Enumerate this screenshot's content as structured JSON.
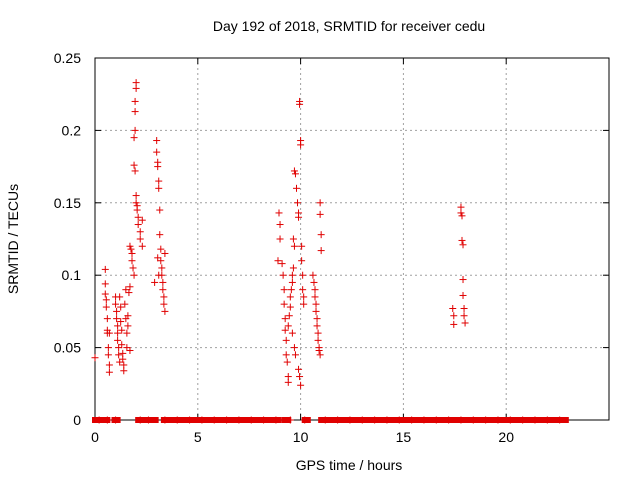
{
  "chart_data": {
    "type": "scatter",
    "title": "Day 192 of 2018, SRMTID for receiver cedu",
    "xlabel": "GPS time / hours",
    "ylabel": "SRMTID / TECUs",
    "xlim": [
      0,
      25
    ],
    "ylim": [
      0,
      0.25
    ],
    "xticks": [
      0,
      5,
      10,
      15,
      20
    ],
    "xtick_labels": [
      "0",
      "5",
      "10",
      "15",
      "20"
    ],
    "yticks": [
      0,
      0.05,
      0.1,
      0.15,
      0.2,
      0.25
    ],
    "ytick_labels": [
      "0",
      "0.05",
      "0.1",
      "0.15",
      "0.2",
      "0.25"
    ],
    "grid": true,
    "marker": "+",
    "series": [
      {
        "name": "SRMTID",
        "color": "#e00000",
        "points": [
          [
            0.0,
            0.043
          ],
          [
            0.5,
            0.104
          ],
          [
            0.5,
            0.094
          ],
          [
            0.5,
            0.087
          ],
          [
            0.55,
            0.083
          ],
          [
            0.55,
            0.078
          ],
          [
            0.6,
            0.07
          ],
          [
            0.6,
            0.062
          ],
          [
            0.6,
            0.06
          ],
          [
            0.65,
            0.05
          ],
          [
            0.65,
            0.045
          ],
          [
            0.7,
            0.038
          ],
          [
            0.7,
            0.033
          ],
          [
            0.7,
            0.06
          ],
          [
            1.0,
            0.085
          ],
          [
            1.0,
            0.08
          ],
          [
            1.05,
            0.075
          ],
          [
            1.05,
            0.07
          ],
          [
            1.1,
            0.065
          ],
          [
            1.1,
            0.06
          ],
          [
            1.1,
            0.055
          ],
          [
            1.15,
            0.05
          ],
          [
            1.15,
            0.045
          ],
          [
            1.2,
            0.04
          ],
          [
            1.2,
            0.085
          ],
          [
            1.25,
            0.078
          ],
          [
            1.25,
            0.068
          ],
          [
            1.3,
            0.062
          ],
          [
            1.3,
            0.052
          ],
          [
            1.35,
            0.046
          ],
          [
            1.35,
            0.042
          ],
          [
            1.4,
            0.038
          ],
          [
            1.4,
            0.034
          ],
          [
            1.45,
            0.08
          ],
          [
            1.5,
            0.09
          ],
          [
            1.5,
            0.07
          ],
          [
            1.55,
            0.06
          ],
          [
            1.55,
            0.05
          ],
          [
            1.6,
            0.065
          ],
          [
            1.6,
            0.072
          ],
          [
            1.65,
            0.088
          ],
          [
            1.7,
            0.092
          ],
          [
            1.7,
            0.048
          ],
          [
            1.7,
            0.12
          ],
          [
            1.75,
            0.118
          ],
          [
            1.8,
            0.115
          ],
          [
            1.8,
            0.11
          ],
          [
            1.85,
            0.105
          ],
          [
            1.9,
            0.1
          ],
          [
            1.9,
            0.195
          ],
          [
            1.95,
            0.2
          ],
          [
            1.95,
            0.213
          ],
          [
            1.95,
            0.22
          ],
          [
            2.0,
            0.233
          ],
          [
            2.0,
            0.229
          ],
          [
            1.9,
            0.176
          ],
          [
            1.95,
            0.172
          ],
          [
            2.0,
            0.155
          ],
          [
            2.0,
            0.15
          ],
          [
            2.05,
            0.148
          ],
          [
            2.05,
            0.145
          ],
          [
            2.1,
            0.14
          ],
          [
            2.1,
            0.135
          ],
          [
            2.2,
            0.13
          ],
          [
            2.2,
            0.125
          ],
          [
            2.3,
            0.138
          ],
          [
            2.3,
            0.12
          ],
          [
            2.9,
            0.095
          ],
          [
            3.0,
            0.193
          ],
          [
            3.0,
            0.185
          ],
          [
            3.05,
            0.178
          ],
          [
            3.05,
            0.175
          ],
          [
            3.1,
            0.165
          ],
          [
            3.1,
            0.16
          ],
          [
            3.15,
            0.145
          ],
          [
            3.15,
            0.128
          ],
          [
            3.2,
            0.118
          ],
          [
            3.2,
            0.11
          ],
          [
            3.25,
            0.105
          ],
          [
            3.25,
            0.1
          ],
          [
            3.3,
            0.095
          ],
          [
            3.3,
            0.09
          ],
          [
            3.35,
            0.085
          ],
          [
            3.35,
            0.08
          ],
          [
            3.4,
            0.075
          ],
          [
            3.4,
            0.115
          ],
          [
            3.05,
            0.112
          ],
          [
            3.1,
            0.1
          ],
          [
            8.9,
            0.11
          ],
          [
            8.95,
            0.143
          ],
          [
            9.0,
            0.135
          ],
          [
            9.0,
            0.125
          ],
          [
            9.1,
            0.108
          ],
          [
            9.15,
            0.1
          ],
          [
            9.2,
            0.09
          ],
          [
            9.2,
            0.08
          ],
          [
            9.25,
            0.07
          ],
          [
            9.25,
            0.062
          ],
          [
            9.3,
            0.055
          ],
          [
            9.3,
            0.045
          ],
          [
            9.35,
            0.04
          ],
          [
            9.4,
            0.03
          ],
          [
            9.4,
            0.026
          ],
          [
            9.4,
            0.065
          ],
          [
            9.45,
            0.072
          ],
          [
            9.5,
            0.078
          ],
          [
            9.5,
            0.085
          ],
          [
            9.55,
            0.09
          ],
          [
            9.6,
            0.095
          ],
          [
            9.6,
            0.1
          ],
          [
            9.65,
            0.105
          ],
          [
            9.65,
            0.125
          ],
          [
            9.7,
            0.12
          ],
          [
            9.7,
            0.172
          ],
          [
            9.75,
            0.17
          ],
          [
            9.8,
            0.16
          ],
          [
            9.85,
            0.15
          ],
          [
            9.9,
            0.143
          ],
          [
            9.9,
            0.14
          ],
          [
            9.95,
            0.22
          ],
          [
            9.95,
            0.218
          ],
          [
            10.0,
            0.193
          ],
          [
            10.0,
            0.19
          ],
          [
            10.05,
            0.12
          ],
          [
            10.05,
            0.11
          ],
          [
            10.1,
            0.1
          ],
          [
            10.1,
            0.09
          ],
          [
            10.15,
            0.085
          ],
          [
            10.15,
            0.08
          ],
          [
            9.9,
            0.035
          ],
          [
            9.95,
            0.03
          ],
          [
            10.0,
            0.024
          ],
          [
            9.6,
            0.06
          ],
          [
            9.7,
            0.05
          ],
          [
            9.75,
            0.045
          ],
          [
            10.6,
            0.1
          ],
          [
            10.65,
            0.095
          ],
          [
            10.7,
            0.09
          ],
          [
            10.7,
            0.085
          ],
          [
            10.75,
            0.08
          ],
          [
            10.75,
            0.075
          ],
          [
            10.8,
            0.07
          ],
          [
            10.8,
            0.065
          ],
          [
            10.85,
            0.06
          ],
          [
            10.85,
            0.055
          ],
          [
            10.9,
            0.05
          ],
          [
            10.9,
            0.048
          ],
          [
            10.95,
            0.045
          ],
          [
            10.95,
            0.15
          ],
          [
            10.95,
            0.142
          ],
          [
            11.0,
            0.128
          ],
          [
            11.0,
            0.117
          ],
          [
            17.4,
            0.077
          ],
          [
            17.45,
            0.072
          ],
          [
            17.45,
            0.066
          ],
          [
            17.8,
            0.147
          ],
          [
            17.8,
            0.143
          ],
          [
            17.85,
            0.141
          ],
          [
            17.85,
            0.124
          ],
          [
            17.9,
            0.121
          ],
          [
            17.9,
            0.097
          ],
          [
            17.9,
            0.086
          ],
          [
            17.95,
            0.077
          ],
          [
            17.95,
            0.072
          ],
          [
            18.0,
            0.067
          ],
          [
            0.2,
            0.0
          ],
          [
            0.6,
            0.0
          ],
          [
            1.0,
            0.0
          ],
          [
            2.2,
            0.0
          ],
          [
            2.6,
            0.0
          ],
          [
            3.4,
            0.0
          ],
          [
            4.0,
            0.0
          ],
          [
            4.6,
            0.0
          ],
          [
            5.2,
            0.0
          ],
          [
            5.8,
            0.0
          ],
          [
            6.4,
            0.0
          ],
          [
            7.0,
            0.0
          ],
          [
            7.6,
            0.0
          ],
          [
            8.2,
            0.0
          ],
          [
            8.8,
            0.0
          ],
          [
            9.5,
            0.0
          ],
          [
            10.2,
            0.0
          ],
          [
            11.2,
            0.0
          ],
          [
            11.8,
            0.0
          ],
          [
            12.4,
            0.0
          ],
          [
            13.0,
            0.0
          ],
          [
            13.6,
            0.0
          ],
          [
            14.2,
            0.0
          ],
          [
            14.8,
            0.0
          ],
          [
            15.4,
            0.0
          ],
          [
            16.0,
            0.0
          ],
          [
            16.6,
            0.0
          ],
          [
            17.2,
            0.0
          ],
          [
            17.8,
            0.0
          ],
          [
            18.4,
            0.0
          ],
          [
            19.0,
            0.0
          ],
          [
            19.6,
            0.0
          ],
          [
            20.2,
            0.0
          ],
          [
            20.8,
            0.0
          ],
          [
            21.4,
            0.0
          ],
          [
            22.0,
            0.0
          ],
          [
            22.6,
            0.0
          ]
        ]
      }
    ],
    "zero_bands": [
      [
        0.0,
        0.6
      ],
      [
        0.95,
        1.1
      ],
      [
        2.1,
        2.95
      ],
      [
        3.35,
        8.9
      ],
      [
        9.2,
        9.4
      ],
      [
        10.2,
        10.35
      ],
      [
        11.0,
        22.9
      ]
    ]
  }
}
